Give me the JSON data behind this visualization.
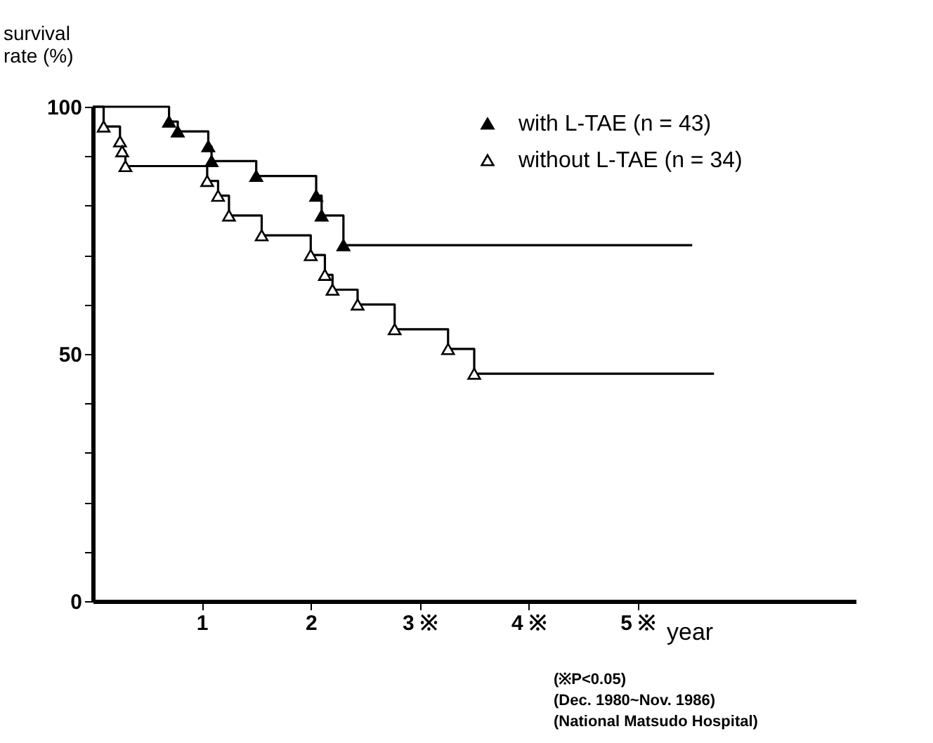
{
  "chart_data": {
    "type": "step",
    "ylabel": "survival rate (%)",
    "xlabel": "year",
    "xlim": [
      0,
      7
    ],
    "xticks": [
      1,
      2,
      {
        "value": 3,
        "label": "3 ※"
      },
      {
        "value": 4,
        "label": "4 ※"
      },
      {
        "value": 5,
        "label": "5 ※"
      }
    ],
    "ylim": [
      0,
      100
    ],
    "yticks": [
      0,
      {
        "value": 10,
        "label": null
      },
      {
        "value": 20,
        "label": null
      },
      {
        "value": 30,
        "label": null
      },
      {
        "value": 40,
        "label": null
      },
      50,
      {
        "value": 60,
        "label": null
      },
      {
        "value": 70,
        "label": null
      },
      {
        "value": 80,
        "label": null
      },
      {
        "value": 90,
        "label": null
      },
      100
    ],
    "marker": "triangle",
    "legend": "top right",
    "line_style": "solid",
    "grid": false,
    "series": [
      {
        "name": "with L-TAE (n = 43)",
        "color": "#000000",
        "x": [
          0,
          0.7,
          0.78,
          1.06,
          1.09,
          1.5,
          2.05,
          2.1,
          2.3,
          5.5
        ],
        "values": [
          100,
          97,
          95,
          92,
          89,
          86,
          82,
          78,
          72,
          72
        ]
      },
      {
        "name": "without L-TAE (n = 34)",
        "color": "#000000",
        "x": [
          0,
          0.1,
          0.25,
          0.27,
          0.3,
          1.05,
          1.15,
          1.25,
          1.55,
          2.0,
          2.13,
          2.2,
          2.43,
          2.77,
          3.26,
          3.5,
          5.7
        ],
        "values": [
          100,
          96,
          93,
          91,
          88,
          85,
          82,
          78,
          74,
          70,
          66,
          63,
          60,
          55,
          51,
          46,
          46
        ]
      }
    ],
    "annotations": [
      "(※P<0.05)",
      "(Dec. 1980~Nov. 1986)",
      "(National Matsudo Hospital)"
    ]
  }
}
